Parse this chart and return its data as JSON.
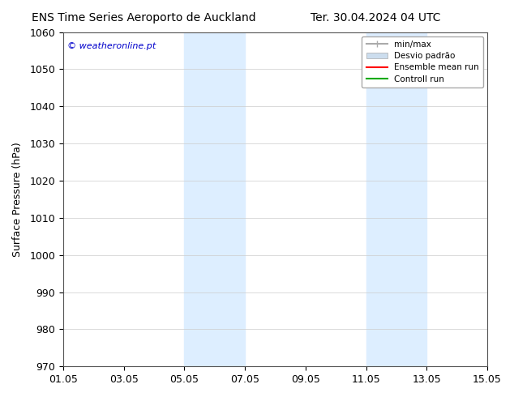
{
  "title_left": "ENS Time Series Aeroporto de Auckland",
  "title_right": "Ter. 30.04.2024 04 UTC",
  "ylabel": "Surface Pressure (hPa)",
  "ylim": [
    970,
    1060
  ],
  "yticks": [
    970,
    980,
    990,
    1000,
    1010,
    1020,
    1030,
    1040,
    1050,
    1060
  ],
  "xlim_start": "2024-05-01",
  "xlim_end": "2024-05-16",
  "xtick_labels": [
    "01.05",
    "03.05",
    "05.05",
    "07.05",
    "09.05",
    "11.05",
    "13.05",
    "15.05"
  ],
  "xtick_positions": [
    0,
    2,
    4,
    6,
    8,
    10,
    12,
    14
  ],
  "shaded_regions": [
    {
      "start": 4,
      "end": 6
    },
    {
      "start": 10,
      "end": 12
    }
  ],
  "shade_color": "#ddeeff",
  "watermark_text": "© weatheronline.pt",
  "watermark_color": "#0000cc",
  "legend_entries": [
    {
      "label": "min/max",
      "color": "#aaaaaa",
      "lw": 1.5
    },
    {
      "label": "Desvio padrão",
      "color": "#ccddee",
      "lw": 6
    },
    {
      "label": "Ensemble mean run",
      "color": "#ff0000",
      "lw": 1.5
    },
    {
      "label": "Controll run",
      "color": "#00aa00",
      "lw": 1.5
    }
  ],
  "background_color": "#ffffff",
  "fig_width": 6.34,
  "fig_height": 4.9,
  "dpi": 100
}
